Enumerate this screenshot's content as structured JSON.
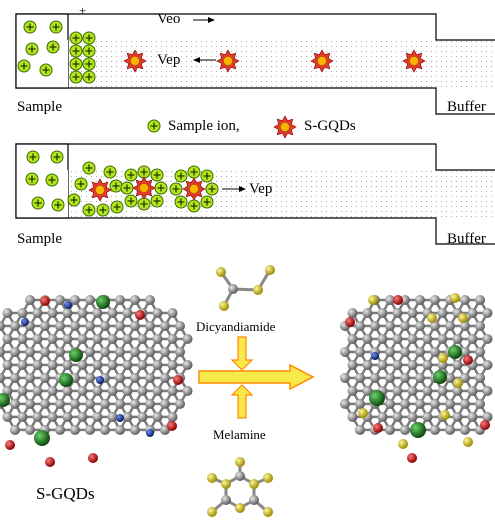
{
  "colors": {
    "ion_fill": "#b5e51d",
    "ion_stroke": "#3a6b00",
    "sgqd_star": "#e03a2a",
    "sgqd_core": "#f7b500",
    "carbon": "#8a8a8a",
    "nitrogen": "#1e3a8a",
    "oxygen": "#c91515",
    "sulfur": "#d4c200",
    "green_atom": "#1f7a1f",
    "arrow_fill": "#f8e94a",
    "arrow_stroke": "#ff8a00",
    "capillary_dots": "#9a9a9a"
  },
  "panel_top": {
    "plus_sign": "+",
    "veo_label": "Veo",
    "vep_label": "Vep",
    "left_reservoir_label": "Sample",
    "right_reservoir_label": "Buffer"
  },
  "legend": {
    "ion_label": "Sample ion,",
    "sgqd_label": "S-GQDs",
    "ion_icon": "green-circle-plus",
    "sgqd_icon": "red-star"
  },
  "panel_bottom": {
    "vep_label": "Vep",
    "left_reservoir_label": "Sample",
    "right_reservoir_label": "Buffer"
  },
  "synthesis": {
    "product_label": "S-GQDs",
    "reagent_top": "Dicyandiamide",
    "reagent_bottom": "Melamine"
  }
}
